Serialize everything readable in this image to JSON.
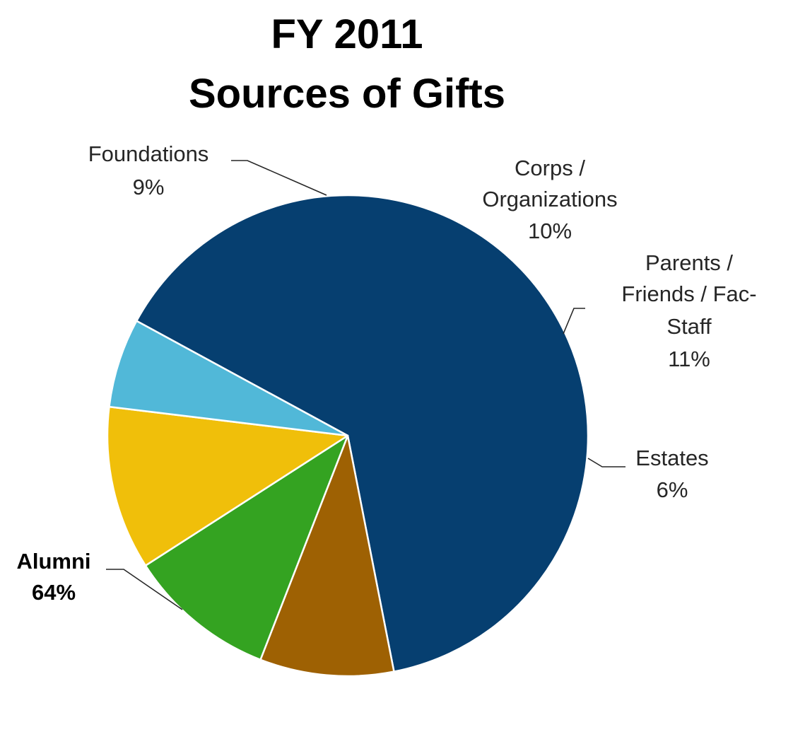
{
  "chart_data": {
    "type": "pie",
    "title_lines": [
      "FY 2011",
      "Sources of Gifts"
    ],
    "slices": [
      {
        "name": "Alumni",
        "label_lines": [
          "Alumni"
        ],
        "percent_label": "64%",
        "value": 64,
        "color": "#063F70",
        "bold": true
      },
      {
        "name": "Foundations",
        "label_lines": [
          "Foundations"
        ],
        "percent_label": "9%",
        "value": 9,
        "color": "#9E6103",
        "bold": false
      },
      {
        "name": "Corps / Organizations",
        "label_lines": [
          "Corps /",
          "Organizations"
        ],
        "percent_label": "10%",
        "value": 10,
        "color": "#34A321",
        "bold": false
      },
      {
        "name": "Parents / Friends / Fac-Staff",
        "label_lines": [
          "Parents /",
          "Friends / Fac-",
          "Staff"
        ],
        "percent_label": "11%",
        "value": 11,
        "color": "#F0BF0A",
        "bold": false
      },
      {
        "name": "Estates",
        "label_lines": [
          "Estates"
        ],
        "percent_label": "6%",
        "value": 6,
        "color": "#51B8D8",
        "bold": false
      }
    ]
  }
}
